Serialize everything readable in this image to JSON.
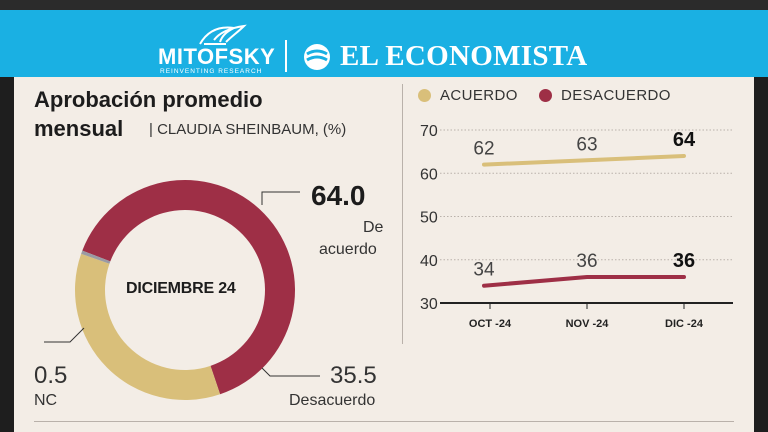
{
  "header": {
    "logo_left": "MITOFSKY",
    "logo_left_tagline": "REINVENTING RESEARCH",
    "logo_right": "EL ECONOMISTA"
  },
  "colors": {
    "acuerdo": "#d9bf7a",
    "desacuerdo": "#9e2f46",
    "nc": "#9a9aa3",
    "header_blue": "#1ab0e3",
    "panel": "#f3ede6"
  },
  "donut": {
    "title_line1": "Aprobación promedio",
    "title_line2": "mensual",
    "subtitle": "| CLAUDIA SHEINBAUM, (%)",
    "center_label": "DICIEMBRE 24",
    "acuerdo_value": "64.0",
    "acuerdo_label_1": "De",
    "acuerdo_label_2": "acuerdo",
    "desacuerdo_value": "35.5",
    "desacuerdo_label": "Desacuerdo",
    "nc_value": "0.5",
    "nc_label": "NC"
  },
  "chart_data": [
    {
      "type": "pie",
      "title": "Aprobación promedio mensual",
      "subtitle": "CLAUDIA SHEINBAUM, (%)",
      "center_label": "DICIEMBRE 24",
      "labels": [
        "De acuerdo",
        "Desacuerdo",
        "NC"
      ],
      "values": [
        64.0,
        35.5,
        0.5
      ]
    },
    {
      "type": "line",
      "categories": [
        "OCT -24",
        "NOV -24",
        "DIC -24"
      ],
      "series": [
        {
          "name": "ACUERDO",
          "values": [
            62,
            63,
            64
          ]
        },
        {
          "name": "DESACUERDO",
          "values": [
            34,
            36,
            36
          ]
        }
      ],
      "ylim": [
        30,
        70
      ],
      "yticks": [
        30,
        40,
        50,
        60,
        70
      ],
      "legend": "top",
      "grid": true
    }
  ]
}
